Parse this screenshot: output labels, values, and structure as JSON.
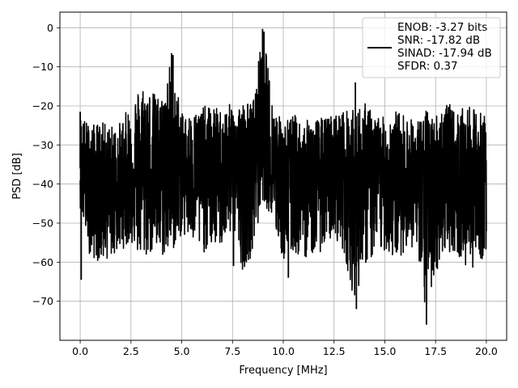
{
  "chart_data": {
    "type": "line",
    "title": "",
    "xlabel": "Frequency [MHz]",
    "ylabel": "PSD [dB]",
    "xlim": [
      -1.0,
      21.0
    ],
    "ylim": [
      -80,
      4
    ],
    "x_ticks": [
      0.0,
      2.5,
      5.0,
      7.5,
      10.0,
      12.5,
      15.0,
      17.5,
      20.0
    ],
    "x_tick_labels": [
      "0.0",
      "2.5",
      "5.0",
      "7.5",
      "10.0",
      "12.5",
      "15.0",
      "17.5",
      "20.0"
    ],
    "y_ticks": [
      0,
      -10,
      -20,
      -30,
      -40,
      -50,
      -60,
      -70
    ],
    "y_tick_labels": [
      "0",
      "−10",
      "−20",
      "−30",
      "−40",
      "−50",
      "−60",
      "−70"
    ],
    "grid": true,
    "legend_position": "top-right",
    "legend_lines": [
      "ENOB: -3.27 bits",
      "SNR: -17.82 dB",
      "SINAD: -17.94 dB",
      "SFDR: 0.37"
    ],
    "line_color": "#000000",
    "series": [
      {
        "x": [
          0.0,
          0.5,
          1.0,
          1.5,
          2.0,
          2.5,
          3.0,
          3.5,
          4.0,
          4.5,
          5.0,
          5.5,
          6.0,
          6.5,
          7.0,
          7.5,
          8.0,
          8.5,
          9.0,
          9.5,
          10.0,
          10.5,
          11.0,
          11.5,
          12.0,
          12.5,
          13.0,
          13.5,
          14.0,
          14.5,
          15.0,
          15.5,
          16.0,
          16.5,
          17.0,
          17.5,
          18.0,
          18.5,
          19.0,
          19.5,
          20.0
        ],
        "upper": [
          -22,
          -25,
          -24,
          -25,
          -24,
          -19,
          -14,
          -16,
          -18,
          -7,
          -22,
          -22,
          -20,
          -20,
          -21,
          -19,
          -19,
          -19,
          0,
          -20,
          -24,
          -22,
          -24,
          -23,
          -23,
          -22,
          -21,
          -21,
          -19,
          -22,
          -23,
          -21,
          -22,
          -24,
          -21,
          -22,
          -18,
          -22,
          -20,
          -21,
          -22
        ],
        "lower": [
          -46,
          -59,
          -60,
          -59,
          -57,
          -55,
          -60,
          -58,
          -59,
          -58,
          -53,
          -55,
          -58,
          -56,
          -56,
          -52,
          -62,
          -58,
          -44,
          -50,
          -60,
          -58,
          -59,
          -58,
          -57,
          -53,
          -58,
          -70,
          -61,
          -59,
          -57,
          -60,
          -57,
          -56,
          -74,
          -63,
          -57,
          -58,
          -62,
          -61,
          -58
        ],
        "typical": [
          -36,
          -38,
          -39,
          -40,
          -40,
          -38,
          -33,
          -35,
          -36,
          -32,
          -36,
          -36,
          -36,
          -36,
          -36,
          -36,
          -34,
          -33,
          -26,
          -34,
          -37,
          -37,
          -38,
          -37,
          -37,
          -36,
          -36,
          -38,
          -35,
          -38,
          -38,
          -37,
          -38,
          -39,
          -40,
          -40,
          -38,
          -38,
          -38,
          -38,
          -38
        ],
        "spikes": [
          {
            "x": 0.0,
            "y": -21.5
          },
          {
            "x": 0.05,
            "y": -64.5
          },
          {
            "x": 4.5,
            "y": -6.5
          },
          {
            "x": 4.57,
            "y": -7.0
          },
          {
            "x": 8.98,
            "y": -0.3
          },
          {
            "x": 9.05,
            "y": -1.0
          },
          {
            "x": 13.6,
            "y": -72.0
          },
          {
            "x": 13.55,
            "y": -14.0
          },
          {
            "x": 17.05,
            "y": -76.0
          },
          {
            "x": 7.55,
            "y": -61.0
          },
          {
            "x": 10.25,
            "y": -64.0
          }
        ]
      }
    ]
  }
}
